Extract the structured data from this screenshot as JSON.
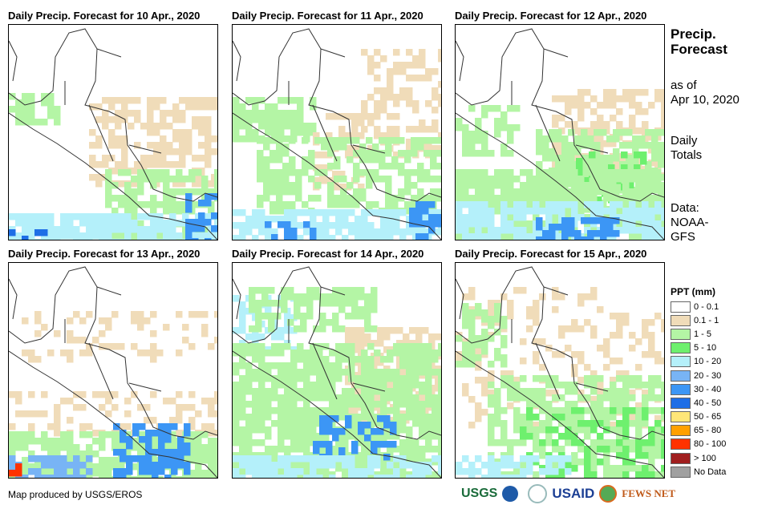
{
  "panels": [
    {
      "title": "Daily Precip. Forecast for 10 Apr., 2020"
    },
    {
      "title": "Daily Precip. Forecast for 11 Apr., 2020"
    },
    {
      "title": "Daily Precip. Forecast for 12 Apr., 2020"
    },
    {
      "title": "Daily Precip. Forecast for 13 Apr., 2020"
    },
    {
      "title": "Daily Precip. Forecast for 14 Apr., 2020"
    },
    {
      "title": "Daily Precip. Forecast for 15 Apr., 2020"
    }
  ],
  "side": {
    "title1": "Precip.",
    "title2": "Forecast",
    "asof1": "as of",
    "asof2": "Apr 10, 2020",
    "daily1": "Daily",
    "daily2": "Totals",
    "data1": "Data:",
    "data2": "NOAA-",
    "data3": "GFS"
  },
  "legend": {
    "title": "PPT (mm)",
    "items": [
      {
        "label": "0 - 0.1",
        "color": "#ffffff"
      },
      {
        "label": "0.1 - 1",
        "color": "#f0dcb9"
      },
      {
        "label": "1 - 5",
        "color": "#b4f5a5"
      },
      {
        "label": "5 - 10",
        "color": "#6ef06e"
      },
      {
        "label": "10 - 20",
        "color": "#b4f0fa"
      },
      {
        "label": "20 - 30",
        "color": "#78b4f5"
      },
      {
        "label": "30 - 40",
        "color": "#3c96f5"
      },
      {
        "label": "40 - 50",
        "color": "#1e6ee6"
      },
      {
        "label": "50 - 65",
        "color": "#ffe678"
      },
      {
        "label": "65 - 80",
        "color": "#ffa000"
      },
      {
        "label": "80 - 100",
        "color": "#ff3200"
      },
      {
        "label": "> 100",
        "color": "#a01e1e"
      },
      {
        "label": "No Data",
        "color": "#a0a0a0"
      }
    ]
  },
  "credit": "Map produced by USGS/EROS",
  "logos": {
    "usgs": "USGS",
    "usaid": "USAID",
    "fews": "FEWS NET"
  }
}
